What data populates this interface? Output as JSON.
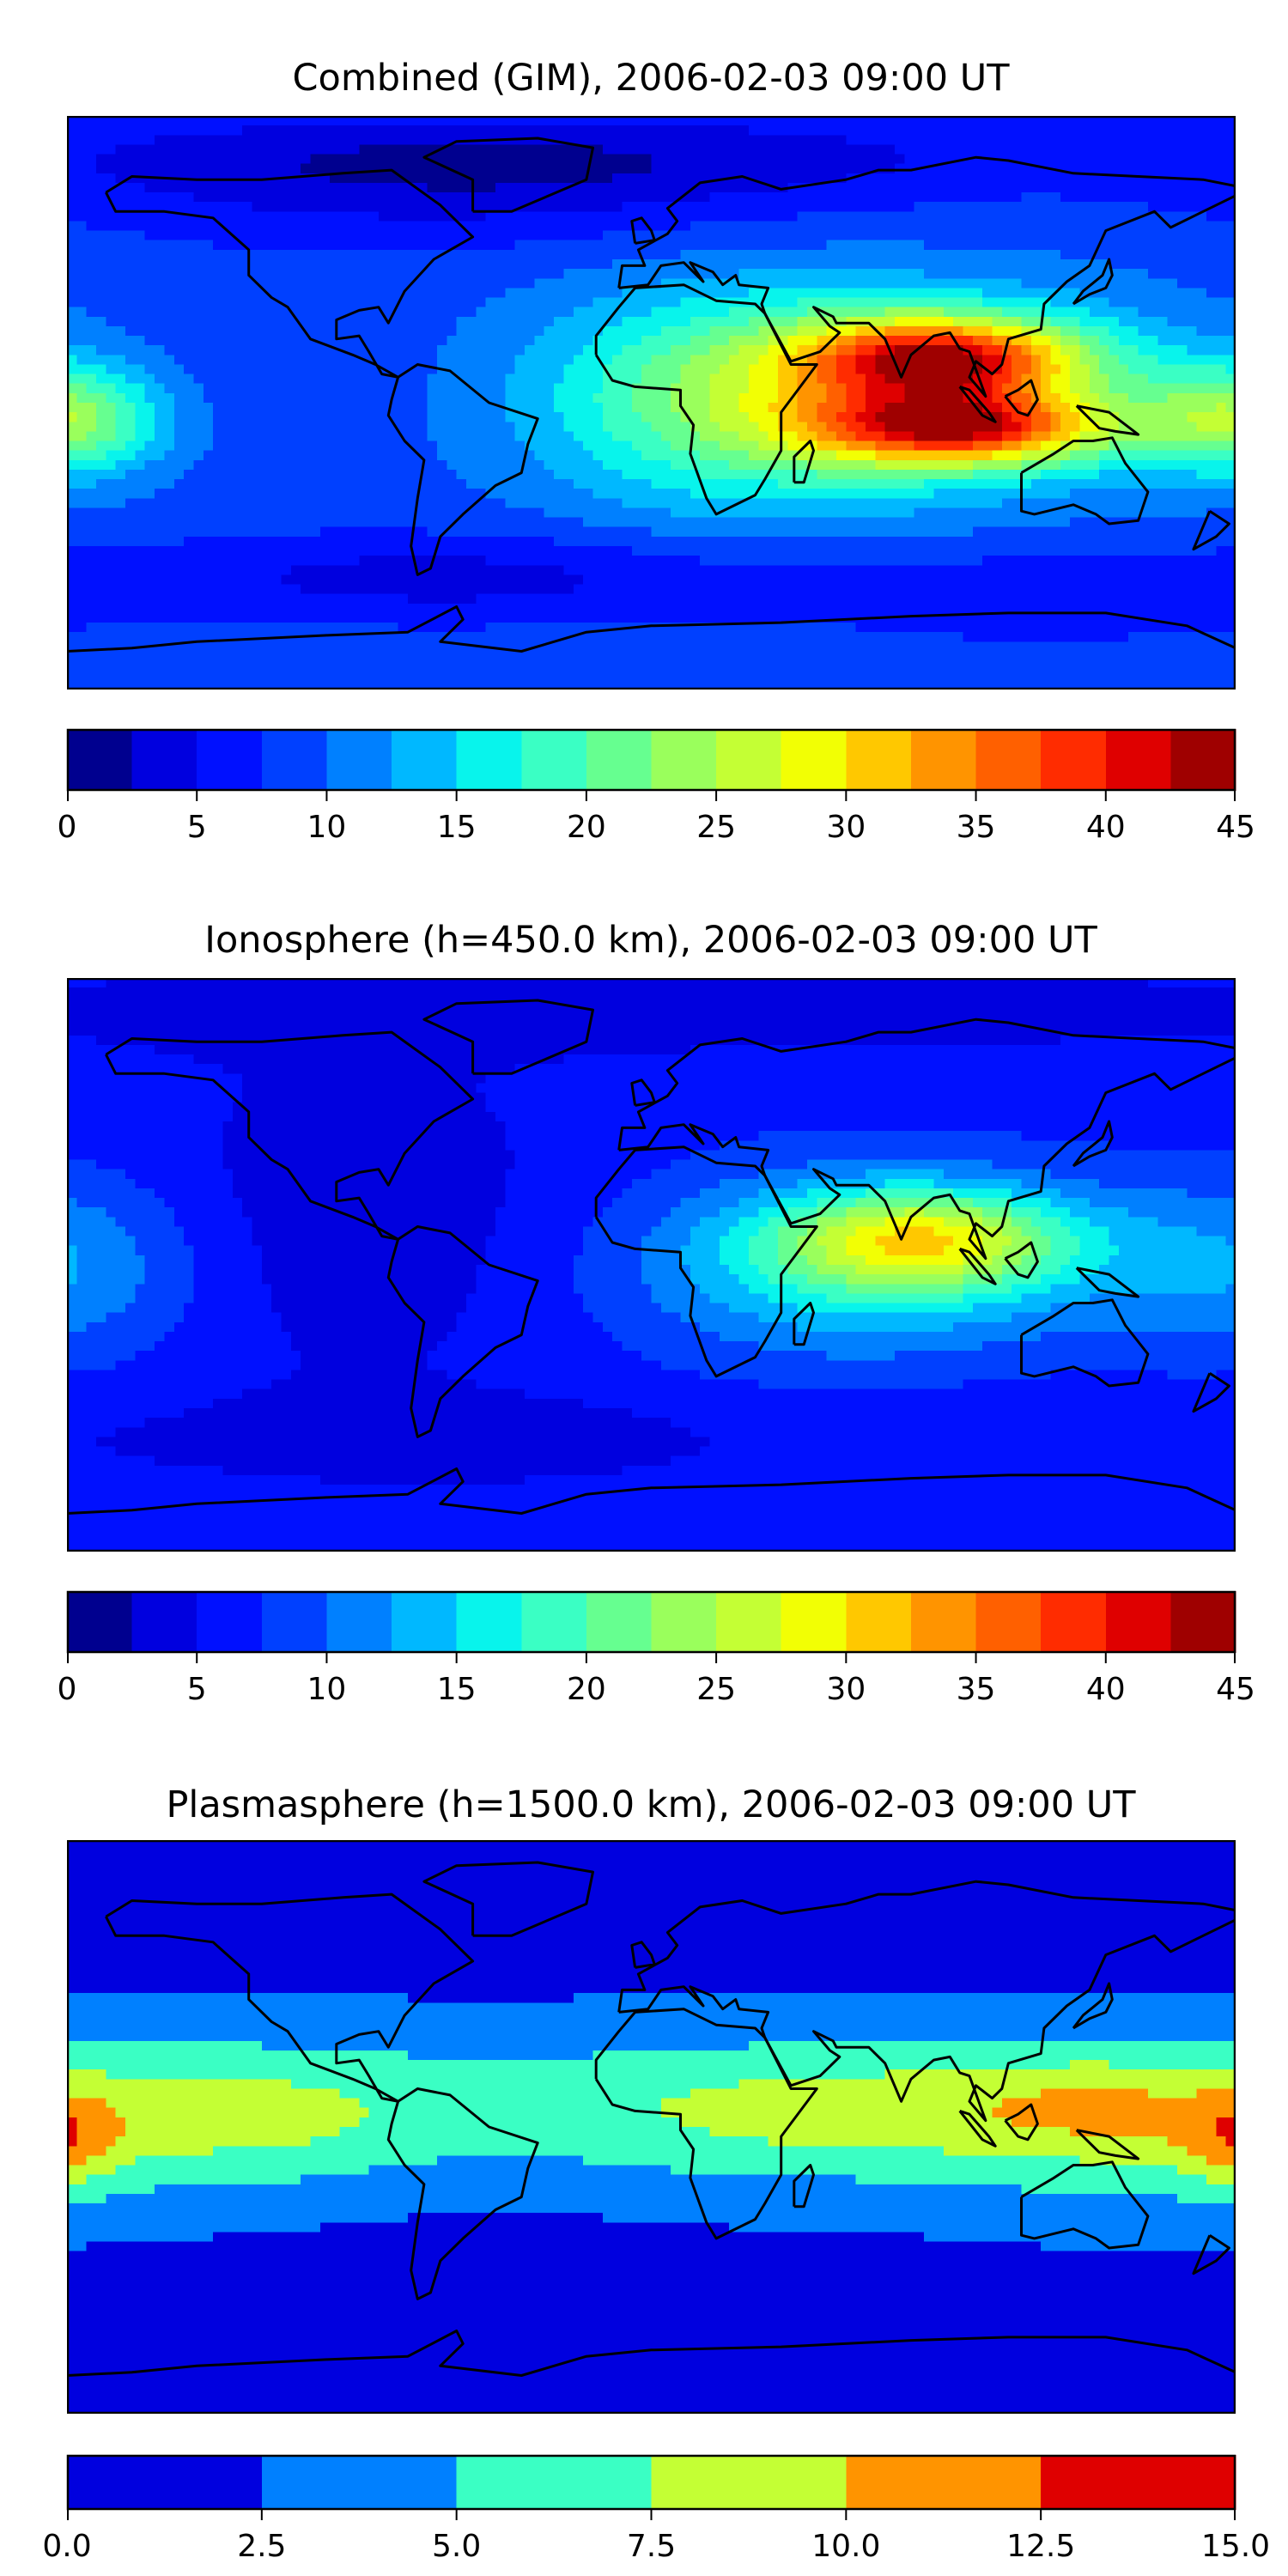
{
  "chart_data": [
    {
      "type": "heatmap",
      "title": "Combined (GIM), 2006-02-03 09:00 UT",
      "xlim": [
        -180,
        180
      ],
      "ylim": [
        -90,
        90
      ],
      "levels": [
        0,
        2.5,
        5,
        7.5,
        10,
        12.5,
        15,
        17.5,
        20,
        22.5,
        25,
        27.5,
        30,
        32.5,
        35,
        37.5,
        40,
        42.5,
        45
      ],
      "colors": [
        "#00008f",
        "#0000df",
        "#0010ff",
        "#0040ff",
        "#0080ff",
        "#00b8ff",
        "#08f4ec",
        "#3affc4",
        "#66ff90",
        "#9aff5c",
        "#c4ff34",
        "#f2ff04",
        "#ffc800",
        "#ff9400",
        "#ff6000",
        "#ff2c00",
        "#df0000",
        "#9f0000"
      ],
      "colorbar_ticks": [
        "0",
        "5",
        "10",
        "15",
        "20",
        "25",
        "30",
        "35",
        "40",
        "45"
      ],
      "colorbar_tick_values": [
        0,
        5,
        10,
        15,
        20,
        25,
        30,
        35,
        40,
        45
      ],
      "field": {
        "base": 9,
        "blobs": [
          [
            90,
            14,
            24,
            30,
            9
          ],
          [
            95,
            -8,
            24,
            32,
            8
          ],
          [
            70,
            3,
            13,
            60,
            22
          ],
          [
            20,
            0,
            6,
            40,
            25
          ],
          [
            -175,
            -5,
            7,
            20,
            12
          ],
          [
            175,
            -5,
            7,
            20,
            12
          ],
          [
            -60,
            70,
            -5,
            90,
            15
          ],
          [
            0,
            78,
            -3,
            180,
            10
          ],
          [
            -60,
            -55,
            -5,
            70,
            10
          ],
          [
            120,
            -60,
            -3,
            60,
            12
          ],
          [
            -120,
            10,
            -1,
            40,
            20
          ]
        ]
      }
    },
    {
      "type": "heatmap",
      "title": "Ionosphere  (h=450.0 km), 2006-02-03 09:00 UT",
      "xlim": [
        -180,
        180
      ],
      "ylim": [
        -90,
        90
      ],
      "levels": [
        0,
        2.5,
        5,
        7.5,
        10,
        12.5,
        15,
        17.5,
        20,
        22.5,
        25,
        27.5,
        30,
        32.5,
        35,
        37.5,
        40,
        42.5,
        45
      ],
      "colors": [
        "#00008f",
        "#0000df",
        "#0010ff",
        "#0040ff",
        "#0080ff",
        "#00b8ff",
        "#08f4ec",
        "#3affc4",
        "#66ff90",
        "#9aff5c",
        "#c4ff34",
        "#f2ff04",
        "#ffc800",
        "#ff9400",
        "#ff6000",
        "#ff2c00",
        "#df0000",
        "#9f0000"
      ],
      "colorbar_ticks": [
        "0",
        "5",
        "10",
        "15",
        "20",
        "25",
        "30",
        "35",
        "40",
        "45"
      ],
      "colorbar_tick_values": [
        0,
        5,
        10,
        15,
        20,
        25,
        30,
        35,
        40,
        45
      ],
      "field": {
        "base": 6.5,
        "blobs": [
          [
            85,
            8,
            16,
            32,
            11
          ],
          [
            65,
            0,
            10,
            50,
            20
          ],
          [
            -180,
            0,
            3,
            30,
            20
          ],
          [
            180,
            0,
            3,
            30,
            20
          ],
          [
            -90,
            15,
            -3,
            50,
            40
          ],
          [
            -60,
            -55,
            -3,
            60,
            10
          ],
          [
            0,
            80,
            -3,
            180,
            10
          ],
          [
            130,
            -55,
            -1.5,
            60,
            12
          ]
        ]
      }
    },
    {
      "type": "heatmap",
      "title": "Plasmasphere (h=1500.0 km), 2006-02-03 09:00 UT",
      "xlim": [
        -180,
        180
      ],
      "ylim": [
        -90,
        90
      ],
      "levels": [
        0,
        2.5,
        5,
        7.5,
        10,
        12.5,
        15
      ],
      "colors": [
        "#0000df",
        "#0080ff",
        "#3affc4",
        "#c4ff34",
        "#ff9400",
        "#df0000"
      ],
      "colorbar_ticks": [
        "0.0",
        "2.5",
        "5.0",
        "7.5",
        "10.0",
        "12.5",
        "15.0"
      ],
      "colorbar_tick_values": [
        0,
        2.5,
        5,
        7.5,
        10,
        12.5,
        15
      ],
      "field": {
        "base": 1.8,
        "blobs": [
          [
            0,
            5,
            6,
            400,
            18
          ],
          [
            -130,
            0,
            1.5,
            40,
            15
          ],
          [
            140,
            5,
            3,
            30,
            12
          ],
          [
            -180,
            -5,
            2.2,
            12,
            10
          ],
          [
            180,
            -5,
            2.2,
            12,
            10
          ],
          [
            -50,
            0,
            -1.5,
            40,
            20
          ],
          [
            150,
            -25,
            1,
            40,
            10
          ],
          [
            70,
            5,
            1.2,
            40,
            12
          ]
        ]
      }
    }
  ],
  "coastlines": {
    "north_america": [
      [
        -168,
        66
      ],
      [
        -160,
        71
      ],
      [
        -140,
        70
      ],
      [
        -120,
        70
      ],
      [
        -95,
        72
      ],
      [
        -80,
        73
      ],
      [
        -65,
        62
      ],
      [
        -55,
        52
      ],
      [
        -67,
        45
      ],
      [
        -76,
        35
      ],
      [
        -81,
        25
      ],
      [
        -84,
        30
      ],
      [
        -90,
        29
      ],
      [
        -97,
        26
      ],
      [
        -97,
        20
      ],
      [
        -90,
        21
      ],
      [
        -87,
        16
      ],
      [
        -83,
        9
      ],
      [
        -78,
        8
      ],
      [
        -85,
        12
      ],
      [
        -92,
        15
      ],
      [
        -105,
        20
      ],
      [
        -112,
        30
      ],
      [
        -117,
        33
      ],
      [
        -124,
        40
      ],
      [
        -124,
        48
      ],
      [
        -135,
        58
      ],
      [
        -150,
        60
      ],
      [
        -165,
        60
      ],
      [
        -168,
        66
      ]
    ],
    "south_america": [
      [
        -78,
        8
      ],
      [
        -72,
        12
      ],
      [
        -62,
        10
      ],
      [
        -50,
        0
      ],
      [
        -35,
        -5
      ],
      [
        -38,
        -13
      ],
      [
        -40,
        -22
      ],
      [
        -48,
        -26
      ],
      [
        -58,
        -35
      ],
      [
        -65,
        -42
      ],
      [
        -68,
        -52
      ],
      [
        -72,
        -54
      ],
      [
        -74,
        -45
      ],
      [
        -72,
        -30
      ],
      [
        -70,
        -18
      ],
      [
        -76,
        -12
      ],
      [
        -81,
        -4
      ],
      [
        -80,
        1
      ],
      [
        -78,
        8
      ]
    ],
    "greenland": [
      [
        -55,
        60
      ],
      [
        -43,
        60
      ],
      [
        -20,
        70
      ],
      [
        -18,
        80
      ],
      [
        -35,
        83
      ],
      [
        -60,
        82
      ],
      [
        -70,
        77
      ],
      [
        -55,
        70
      ],
      [
        -55,
        60
      ]
    ],
    "africa": [
      [
        -17,
        15
      ],
      [
        -17,
        21
      ],
      [
        -10,
        30
      ],
      [
        -5,
        36
      ],
      [
        10,
        37
      ],
      [
        20,
        32
      ],
      [
        32,
        31
      ],
      [
        35,
        28
      ],
      [
        43,
        12
      ],
      [
        51,
        12
      ],
      [
        40,
        -3
      ],
      [
        40,
        -15
      ],
      [
        35,
        -24
      ],
      [
        32,
        -29
      ],
      [
        20,
        -35
      ],
      [
        17,
        -30
      ],
      [
        12,
        -16
      ],
      [
        13,
        -7
      ],
      [
        9,
        -1
      ],
      [
        9,
        4
      ],
      [
        -5,
        5
      ],
      [
        -12,
        7
      ],
      [
        -17,
        15
      ]
    ],
    "eurasia": [
      [
        -10,
        36
      ],
      [
        -9,
        43
      ],
      [
        -2,
        43
      ],
      [
        -4,
        48
      ],
      [
        5,
        53
      ],
      [
        8,
        57
      ],
      [
        5,
        61
      ],
      [
        15,
        69
      ],
      [
        28,
        71
      ],
      [
        40,
        67
      ],
      [
        60,
        70
      ],
      [
        70,
        73
      ],
      [
        80,
        73
      ],
      [
        100,
        77
      ],
      [
        110,
        76
      ],
      [
        130,
        72
      ],
      [
        150,
        71
      ],
      [
        170,
        70
      ],
      [
        180,
        68
      ],
      [
        180,
        65
      ],
      [
        170,
        60
      ],
      [
        160,
        55
      ],
      [
        155,
        60
      ],
      [
        140,
        54
      ],
      [
        135,
        43
      ],
      [
        128,
        38
      ],
      [
        121,
        31
      ],
      [
        120,
        23
      ],
      [
        110,
        20
      ],
      [
        108,
        12
      ],
      [
        105,
        9
      ],
      [
        100,
        13
      ],
      [
        98,
        8
      ],
      [
        103,
        2
      ],
      [
        98,
        16
      ],
      [
        95,
        17
      ],
      [
        92,
        22
      ],
      [
        87,
        21
      ],
      [
        80,
        15
      ],
      [
        77,
        8
      ],
      [
        72,
        20
      ],
      [
        67,
        25
      ],
      [
        57,
        25
      ],
      [
        56,
        27
      ],
      [
        50,
        30
      ],
      [
        55,
        24
      ],
      [
        58,
        22
      ],
      [
        52,
        16
      ],
      [
        43,
        13
      ],
      [
        35,
        28
      ],
      [
        34,
        31
      ],
      [
        36,
        36
      ],
      [
        27,
        37
      ],
      [
        26,
        40
      ],
      [
        22,
        37
      ],
      [
        19,
        41
      ],
      [
        12,
        44
      ],
      [
        16,
        38
      ],
      [
        10,
        44
      ],
      [
        3,
        43
      ],
      [
        -1,
        37
      ],
      [
        -10,
        36
      ]
    ],
    "britain": [
      [
        -5,
        50
      ],
      [
        1,
        51
      ],
      [
        0,
        54
      ],
      [
        -3,
        58
      ],
      [
        -6,
        57
      ],
      [
        -5,
        50
      ]
    ],
    "japan": [
      [
        130,
        31
      ],
      [
        135,
        34
      ],
      [
        140,
        36
      ],
      [
        142,
        40
      ],
      [
        141,
        45
      ],
      [
        139,
        40
      ],
      [
        133,
        35
      ],
      [
        130,
        31
      ]
    ],
    "madagascar": [
      [
        44,
        -25
      ],
      [
        47,
        -25
      ],
      [
        50,
        -15
      ],
      [
        49,
        -12
      ],
      [
        44,
        -17
      ],
      [
        44,
        -25
      ]
    ],
    "borneo": [
      [
        109,
        2
      ],
      [
        113,
        -3
      ],
      [
        116,
        -4
      ],
      [
        119,
        1
      ],
      [
        117,
        7
      ],
      [
        113,
        4
      ],
      [
        109,
        2
      ]
    ],
    "sumatra": [
      [
        95,
        5
      ],
      [
        98,
        4
      ],
      [
        104,
        -3
      ],
      [
        106,
        -6
      ],
      [
        102,
        -4
      ],
      [
        95,
        5
      ]
    ],
    "new_guinea": [
      [
        131,
        -1
      ],
      [
        141,
        -3
      ],
      [
        150,
        -10
      ],
      [
        143,
        -9
      ],
      [
        138,
        -8
      ],
      [
        131,
        -1
      ]
    ],
    "new_zealand": [
      [
        172,
        -34
      ],
      [
        178,
        -38
      ],
      [
        174,
        -42
      ],
      [
        167,
        -46
      ],
      [
        172,
        -34
      ]
    ],
    "australia": [
      [
        114,
        -22
      ],
      [
        114,
        -34
      ],
      [
        118,
        -35
      ],
      [
        130,
        -32
      ],
      [
        137,
        -35
      ],
      [
        141,
        -38
      ],
      [
        150,
        -37
      ],
      [
        153,
        -28
      ],
      [
        146,
        -19
      ],
      [
        142,
        -11
      ],
      [
        136,
        -12
      ],
      [
        130,
        -12
      ],
      [
        124,
        -16
      ],
      [
        114,
        -22
      ]
    ],
    "antarctica": [
      [
        -180,
        -78
      ],
      [
        -160,
        -77
      ],
      [
        -140,
        -75
      ],
      [
        -100,
        -73
      ],
      [
        -75,
        -72
      ],
      [
        -60,
        -64
      ],
      [
        -58,
        -68
      ],
      [
        -65,
        -75
      ],
      [
        -40,
        -78
      ],
      [
        -20,
        -72
      ],
      [
        0,
        -70
      ],
      [
        40,
        -69
      ],
      [
        80,
        -67
      ],
      [
        110,
        -66
      ],
      [
        140,
        -66
      ],
      [
        165,
        -70
      ],
      [
        180,
        -77
      ]
    ]
  }
}
